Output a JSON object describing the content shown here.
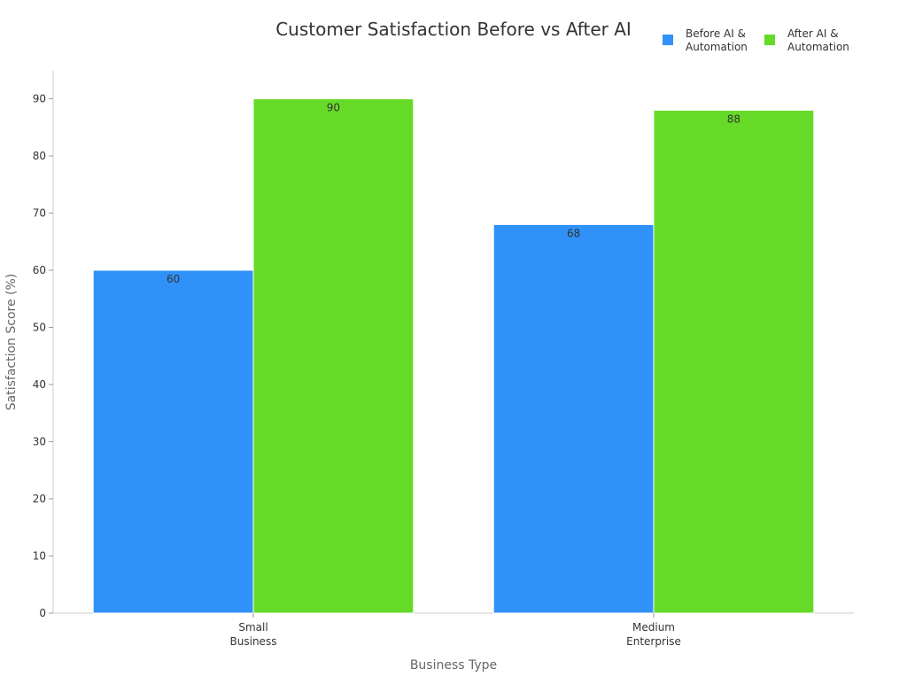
{
  "chart_data": {
    "type": "bar",
    "title": "Customer Satisfaction Before vs After AI",
    "xlabel": "Business Type",
    "ylabel": "Satisfaction Score (%)",
    "categories": [
      [
        "Small",
        "Business"
      ],
      [
        "Medium",
        "Enterprise"
      ]
    ],
    "series": [
      {
        "name": [
          "Before AI &",
          "Automation"
        ],
        "values": [
          60,
          68
        ],
        "color": "#3091f8"
      },
      {
        "name": [
          "After AI &",
          "Automation"
        ],
        "values": [
          90,
          88
        ],
        "color": "#66db27"
      }
    ],
    "ylim": [
      0,
      95
    ],
    "yticks": [
      0,
      10,
      20,
      30,
      40,
      50,
      60,
      70,
      80,
      90
    ],
    "grid": false,
    "legend_position": "top-right",
    "data_labels": true
  }
}
